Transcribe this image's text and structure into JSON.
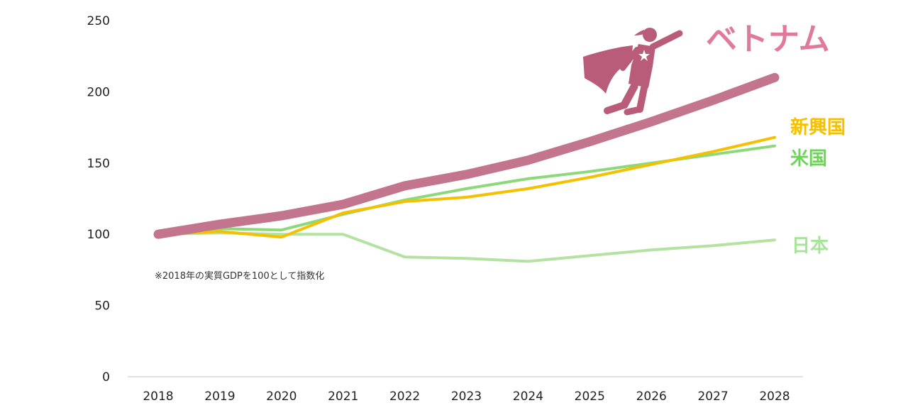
{
  "chart_data": {
    "type": "line",
    "x": [
      "2018",
      "2019",
      "2020",
      "2021",
      "2022",
      "2023",
      "2024",
      "2025",
      "2026",
      "2027",
      "2028"
    ],
    "ylim": [
      0,
      250
    ],
    "yticks": [
      "0",
      "50",
      "100",
      "150",
      "200",
      "250"
    ],
    "grid": false,
    "note": "※2018年の実質GDPを100として指数化",
    "series": [
      {
        "name": "日本",
        "color": "#b3e2a3",
        "values": [
          100,
          101,
          100,
          100,
          84,
          83,
          81,
          85,
          89,
          92,
          96
        ]
      },
      {
        "name": "米国",
        "color": "#8dd97a",
        "values": [
          100,
          104,
          103,
          114,
          124,
          132,
          139,
          144,
          150,
          156,
          162
        ]
      },
      {
        "name": "新興国",
        "color": "#f5c000",
        "values": [
          100,
          102,
          98,
          115,
          123,
          126,
          132,
          140,
          149,
          158,
          168
        ]
      },
      {
        "name": "ベトナム",
        "color": "#c3758d",
        "values": [
          100,
          107,
          113,
          121,
          134,
          142,
          152,
          165,
          179,
          194,
          210
        ]
      }
    ]
  },
  "icons": {
    "hero": "flying-superhero-icon",
    "hero_color": "#b85c7a"
  },
  "label_colors": {
    "ベトナム": "#e07a9b",
    "新興国": "#f5c000",
    "米国": "#6fd35b",
    "日本": "#a8e39a"
  }
}
